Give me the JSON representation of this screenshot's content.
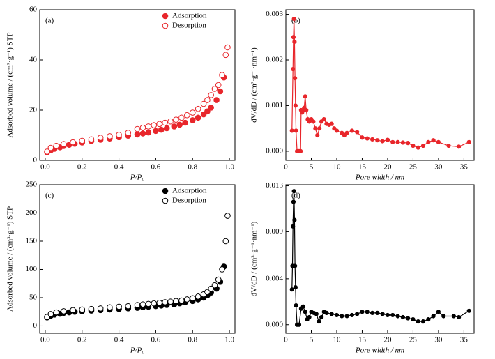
{
  "chart_data": [
    {
      "type": "scatter",
      "annotation": "(a)",
      "xlabel": "P/P₀",
      "ylabel": "Adsorbed volume / (cm³·g⁻¹)  STP",
      "xlim": [
        -0.03,
        1.03
      ],
      "xticks": [
        {
          "value": 0,
          "label": "0.0"
        },
        0.2,
        0.4,
        0.6,
        0.8,
        {
          "value": 1,
          "label": "1.0"
        }
      ],
      "ylim": [
        0,
        60
      ],
      "yticks": [
        0,
        20,
        40,
        60
      ],
      "legend": "upper right",
      "series": [
        {
          "name": "Adsorption",
          "color": "#e8262b",
          "marker": "filled",
          "x": [
            0.01,
            0.03,
            0.05,
            0.08,
            0.1,
            0.13,
            0.16,
            0.2,
            0.25,
            0.3,
            0.35,
            0.4,
            0.45,
            0.5,
            0.53,
            0.56,
            0.6,
            0.63,
            0.66,
            0.7,
            0.73,
            0.76,
            0.8,
            0.83,
            0.86,
            0.88,
            0.9,
            0.93,
            0.95,
            0.97
          ],
          "values": [
            3.2,
            4,
            4.6,
            5.2,
            5.7,
            6.2,
            6.6,
            7.1,
            7.7,
            8.2,
            8.7,
            9.2,
            9.8,
            10.3,
            10.7,
            11.1,
            11.7,
            12.2,
            12.8,
            13.5,
            14.2,
            15,
            16,
            17,
            18.3,
            19.5,
            21,
            24,
            27.5,
            33
          ]
        },
        {
          "name": "Desorption",
          "color": "#e8262b",
          "marker": "open",
          "x": [
            0.01,
            0.03,
            0.06,
            0.1,
            0.15,
            0.2,
            0.25,
            0.3,
            0.35,
            0.4,
            0.45,
            0.5,
            0.53,
            0.56,
            0.59,
            0.62,
            0.65,
            0.68,
            0.71,
            0.74,
            0.77,
            0.8,
            0.83,
            0.86,
            0.88,
            0.9,
            0.92,
            0.94,
            0.96,
            0.98,
            0.99
          ],
          "values": [
            3.5,
            5,
            5.8,
            6.5,
            7.2,
            7.8,
            8.4,
            9,
            9.6,
            10.2,
            11,
            12.5,
            13,
            13.5,
            14,
            14.5,
            15,
            15.5,
            16.2,
            17,
            18,
            19,
            20.5,
            22.5,
            24,
            26,
            28.5,
            30,
            34,
            42,
            45
          ]
        }
      ]
    },
    {
      "type": "line",
      "annotation": "(b)",
      "xlabel": "Pore width / nm",
      "ylabel": "dV/dD / (cm³·g⁻¹·nm⁻¹)",
      "xlim": [
        0,
        37
      ],
      "xticks": [
        0,
        5,
        10,
        15,
        20,
        25,
        30,
        35
      ],
      "ylim": [
        -0.0002,
        0.0031
      ],
      "yticks": [
        {
          "value": 0,
          "label": "0.000"
        },
        0.001,
        0.002,
        0.003
      ],
      "series": [
        {
          "color": "#e8262b",
          "marker": "filled",
          "x": [
            1.2,
            1.4,
            1.5,
            1.6,
            1.7,
            1.8,
            1.9,
            2.0,
            2.2,
            2.6,
            2.9,
            3.0,
            3.2,
            3.4,
            3.6,
            3.8,
            4.0,
            4.3,
            4.6,
            5.0,
            5.4,
            5.8,
            6.2,
            6.6,
            7.0,
            7.5,
            8.0,
            8.5,
            9.0,
            9.5,
            10,
            11,
            11.5,
            12,
            13,
            14,
            15,
            16,
            17,
            18,
            19,
            20,
            21,
            22,
            23,
            24,
            25,
            26,
            27,
            28,
            29,
            30,
            32,
            34,
            36
          ],
          "values": [
            0.00045,
            0.0018,
            0.0025,
            0.0029,
            0.0024,
            0.0016,
            0.001,
            0.00045,
            0,
            0,
            0,
            0.0009,
            0.00085,
            0.0009,
            0.00095,
            0.0012,
            0.0009,
            0.0007,
            0.00065,
            0.0007,
            0.00065,
            0.0005,
            0.00035,
            0.0005,
            0.00065,
            0.0007,
            0.0006,
            0.00058,
            0.0006,
            0.0005,
            0.00045,
            0.0004,
            0.00035,
            0.0004,
            0.00045,
            0.00042,
            0.0003,
            0.00028,
            0.00026,
            0.00024,
            0.00022,
            0.00025,
            0.0002,
            0.0002,
            0.00019,
            0.00018,
            0.00012,
            8e-05,
            0.00012,
            0.0002,
            0.00024,
            0.0002,
            0.00012,
            0.0001,
            0.0002
          ]
        }
      ]
    },
    {
      "type": "scatter",
      "annotation": "(c)",
      "xlabel": "P/P₀",
      "ylabel": "Adsorbed volume / (cm³·g⁻¹)  STP",
      "xlim": [
        -0.03,
        1.03
      ],
      "xticks": [
        {
          "value": 0,
          "label": "0.0"
        },
        0.2,
        0.4,
        0.6,
        0.8,
        {
          "value": 1,
          "label": "1.0"
        }
      ],
      "ylim": [
        -13,
        250
      ],
      "yticks": [
        0,
        50,
        100,
        150,
        200,
        250
      ],
      "legend": "upper right",
      "series": [
        {
          "name": "Adsorption",
          "color": "#000000",
          "marker": "filled",
          "x": [
            0.01,
            0.03,
            0.05,
            0.08,
            0.1,
            0.13,
            0.16,
            0.2,
            0.25,
            0.3,
            0.35,
            0.4,
            0.45,
            0.5,
            0.53,
            0.56,
            0.6,
            0.63,
            0.66,
            0.7,
            0.73,
            0.76,
            0.8,
            0.83,
            0.86,
            0.88,
            0.9,
            0.93,
            0.95,
            0.97
          ],
          "values": [
            15,
            18,
            20,
            21.5,
            23,
            24,
            25,
            26,
            27,
            28,
            29,
            30,
            31,
            32,
            33,
            34,
            35,
            36,
            37,
            38,
            40,
            42,
            44,
            47,
            50,
            54,
            59,
            66,
            78,
            105
          ]
        },
        {
          "name": "Desorption",
          "color": "#000000",
          "marker": "open",
          "x": [
            0.01,
            0.03,
            0.06,
            0.1,
            0.15,
            0.2,
            0.25,
            0.3,
            0.35,
            0.4,
            0.45,
            0.5,
            0.53,
            0.56,
            0.59,
            0.62,
            0.65,
            0.68,
            0.71,
            0.74,
            0.77,
            0.8,
            0.83,
            0.86,
            0.88,
            0.9,
            0.92,
            0.94,
            0.96,
            0.98,
            0.99
          ],
          "values": [
            16,
            21,
            24,
            26,
            28,
            29,
            30,
            31,
            33,
            34,
            35,
            37,
            38,
            39,
            40,
            41,
            42,
            43,
            44,
            45,
            47,
            49,
            52,
            56,
            60,
            66,
            72,
            82,
            100,
            150,
            195
          ]
        }
      ]
    },
    {
      "type": "line",
      "annotation": "(d)",
      "xlabel": "Pore width / nm",
      "ylabel": "dV/dD / (cm³·g⁻¹·nm⁻¹)",
      "xlim": [
        0,
        37
      ],
      "xticks": [
        0,
        5,
        10,
        15,
        20,
        25,
        30,
        35
      ],
      "ylim": [
        -0.0008,
        0.0131
      ],
      "yticks": [
        {
          "value": 0,
          "label": "0.000"
        },
        {
          "value": 0.0043,
          "label": "0.004"
        },
        {
          "value": 0.0087,
          "label": "0.009"
        },
        0.013
      ],
      "series": [
        {
          "color": "#000000",
          "marker": "filled",
          "x": [
            1.2,
            1.3,
            1.4,
            1.5,
            1.6,
            1.7,
            1.8,
            1.9,
            2.0,
            2.2,
            2.6,
            3.0,
            3.4,
            3.8,
            4.2,
            4.6,
            5.0,
            5.5,
            6.0,
            6.5,
            7.0,
            7.5,
            8,
            9,
            10,
            11,
            12,
            13,
            14,
            15,
            16,
            17,
            18,
            19,
            20,
            21,
            22,
            23,
            24,
            25,
            26,
            27,
            28,
            29,
            30,
            31,
            33,
            34,
            36
          ],
          "values": [
            0.0033,
            0.0055,
            0.0092,
            0.0115,
            0.0125,
            0.0098,
            0.0055,
            0.0035,
            0.0018,
            0,
            0,
            0.0015,
            0.0017,
            0.0012,
            0.0005,
            0.0007,
            0.0012,
            0.0011,
            0.001,
            0.0003,
            0.0007,
            0.0012,
            0.0011,
            0.001,
            0.0009,
            0.0008,
            0.0008,
            0.0009,
            0.001,
            0.0012,
            0.0012,
            0.0011,
            0.0011,
            0.001,
            0.0009,
            0.0009,
            0.0008,
            0.0007,
            0.0006,
            0.0005,
            0.0003,
            0.0003,
            0.0005,
            0.0008,
            0.0012,
            0.0008,
            0.0008,
            0.0007,
            0.0013
          ]
        }
      ]
    }
  ]
}
